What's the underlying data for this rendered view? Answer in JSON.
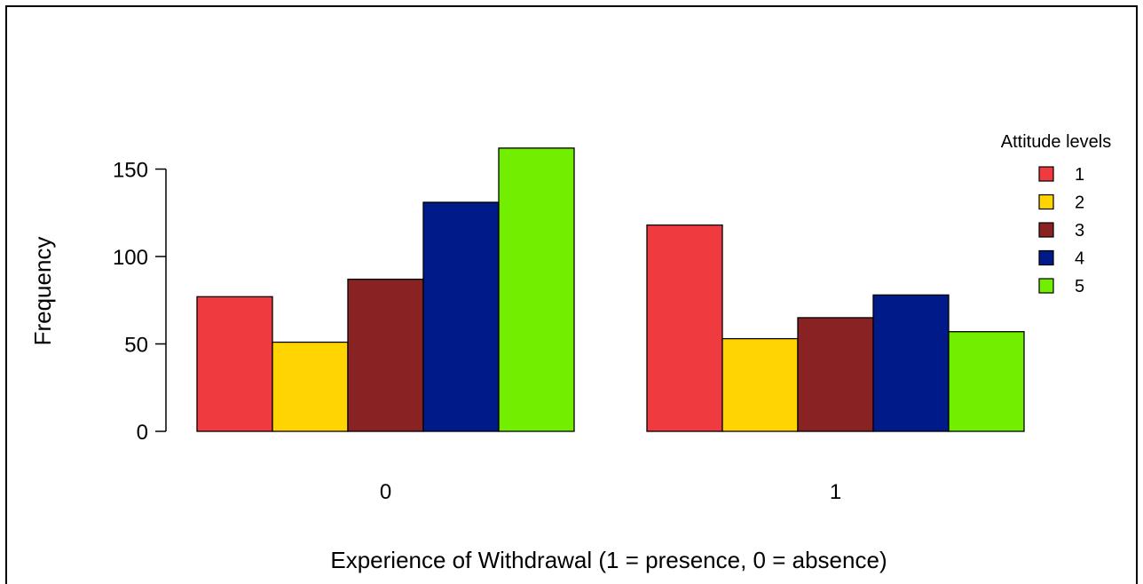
{
  "chart_data": {
    "type": "bar",
    "mode": "grouped",
    "title": "",
    "xlabel": "Experience of Withdrawal (1 = presence, 0 = absence)",
    "ylabel": "Frequency",
    "categories": [
      "0",
      "1"
    ],
    "ylim": [
      0,
      160
    ],
    "yticks": [
      0,
      50,
      100,
      150
    ],
    "grid": false,
    "legend": {
      "title": "Attitude levels",
      "placement": "right"
    },
    "series": [
      {
        "name": "1",
        "color": "#ef3b3f",
        "values": [
          77,
          118
        ]
      },
      {
        "name": "2",
        "color": "#ffd400",
        "values": [
          51,
          53
        ]
      },
      {
        "name": "3",
        "color": "#892222",
        "values": [
          87,
          65
        ]
      },
      {
        "name": "4",
        "color": "#001a8a",
        "values": [
          131,
          78
        ]
      },
      {
        "name": "5",
        "color": "#72ee00",
        "values": [
          162,
          57
        ]
      }
    ]
  }
}
